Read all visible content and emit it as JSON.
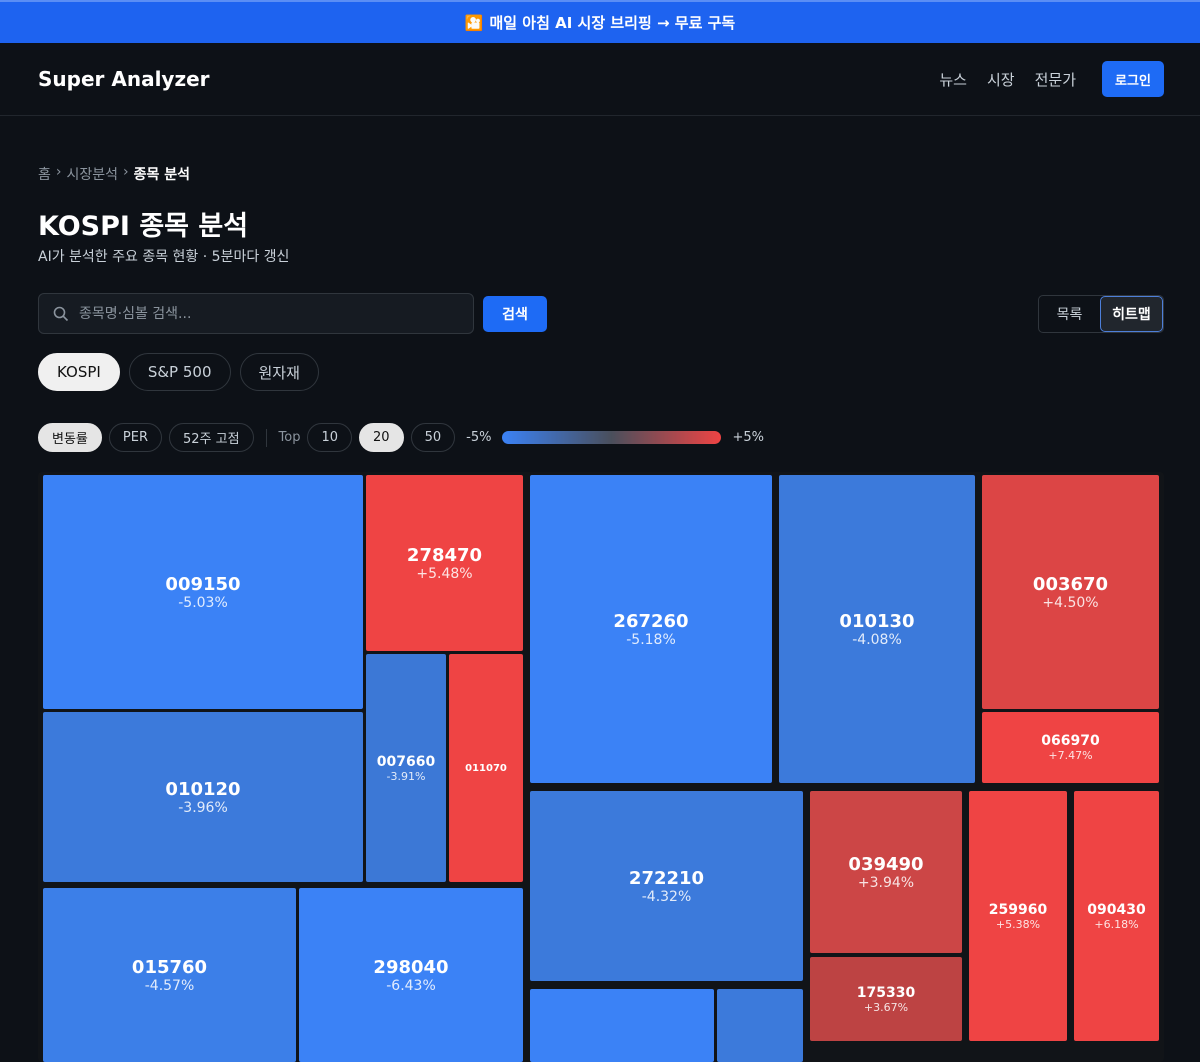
{
  "promo": {
    "icon": "movie-camera-icon",
    "text": "매일 아침 AI 시장 브리핑 → 무료 구독"
  },
  "nav": {
    "brand": "Super Analyzer",
    "links": [
      "뉴스",
      "시장",
      "전문가"
    ],
    "login": "로그인"
  },
  "breadcrumb": {
    "home": "홈",
    "sep": "›",
    "section": "시장분석",
    "current": "종목 분석"
  },
  "page": {
    "title": "KOSPI 종목 분석",
    "subtitle": "AI가 분석한 주요 종목 현황 · 5분마다 갱신"
  },
  "search": {
    "placeholder": "종목명·심볼 검색...",
    "value": "",
    "button": "검색"
  },
  "view": {
    "list": "목록",
    "heatmap": "히트맵",
    "selected": "히트맵"
  },
  "markets": {
    "items": [
      "KOSPI",
      "S&P 500",
      "원자재"
    ],
    "selected": "KOSPI"
  },
  "metrics": {
    "items": [
      "변동률",
      "PER",
      "52주 고점"
    ],
    "selected": "변동률"
  },
  "top": {
    "label": "Top",
    "options": [
      "10",
      "20",
      "50"
    ],
    "selected": "20"
  },
  "scale": {
    "min": "-5%",
    "max": "+5%",
    "neg_color": "#3b82f6",
    "pos_color": "#ef4444"
  },
  "tiles": [
    {
      "symbol": "009150",
      "change": "-5.03%"
    },
    {
      "symbol": "278470",
      "change": "+5.48%"
    },
    {
      "symbol": "267260",
      "change": "-5.18%"
    },
    {
      "symbol": "010130",
      "change": "-4.08%"
    },
    {
      "symbol": "003670",
      "change": "+4.50%"
    },
    {
      "symbol": "066970",
      "change": "+7.47%"
    },
    {
      "symbol": "010120",
      "change": "-3.96%"
    },
    {
      "symbol": "007660",
      "change": "-3.91%"
    },
    {
      "symbol": "011070",
      "change": ""
    },
    {
      "symbol": "272210",
      "change": "-4.32%"
    },
    {
      "symbol": "039490",
      "change": "+3.94%"
    },
    {
      "symbol": "175330",
      "change": "+3.67%"
    },
    {
      "symbol": "259960",
      "change": "+5.38%"
    },
    {
      "symbol": "090430",
      "change": "+6.18%"
    },
    {
      "symbol": "015760",
      "change": "-4.57%"
    },
    {
      "symbol": "298040",
      "change": "-6.43%"
    },
    {
      "symbol": "",
      "change": ""
    },
    {
      "symbol": "",
      "change": ""
    }
  ]
}
